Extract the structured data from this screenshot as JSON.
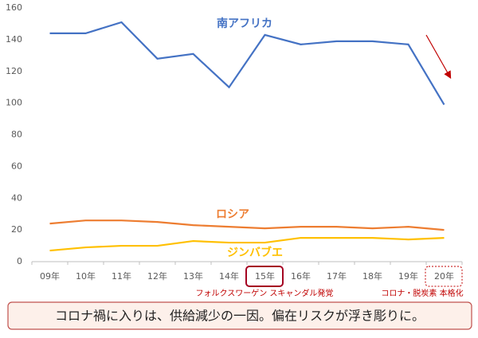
{
  "chart_data": {
    "type": "line",
    "categories": [
      "09年",
      "10年",
      "11年",
      "12年",
      "13年",
      "14年",
      "15年",
      "16年",
      "17年",
      "18年",
      "19年",
      "20年"
    ],
    "series": [
      {
        "name": "南アフリカ",
        "color": "#4472c4",
        "values": [
          144,
          144,
          151,
          128,
          131,
          110,
          143,
          137,
          139,
          139,
          137,
          99
        ]
      },
      {
        "name": "ロシア",
        "color": "#ed7d31",
        "values": [
          24,
          26,
          26,
          25,
          23,
          22,
          21,
          22,
          22,
          21,
          22,
          20
        ]
      },
      {
        "name": "ジンバブエ",
        "color": "#ffc000",
        "values": [
          7,
          9,
          10,
          10,
          13,
          12,
          12,
          15,
          15,
          15,
          14,
          15
        ]
      }
    ],
    "ylim": [
      0,
      160
    ],
    "yticks": [
      0,
      20,
      40,
      60,
      80,
      100,
      120,
      140,
      160
    ],
    "grid": false,
    "annotations": [
      "フォルクスワーゲン スキャンダル発覚",
      "コロナ・脱炭素 本格化"
    ],
    "callout": "コロナ禍に入りは、供給減少の一因。偏在リスクが浮き彫りに。"
  }
}
